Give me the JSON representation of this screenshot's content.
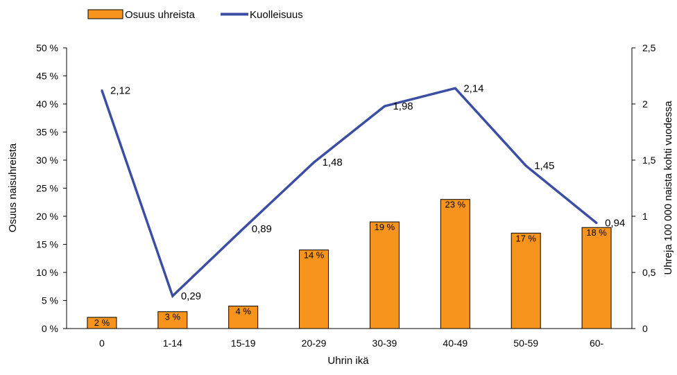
{
  "chart_data": {
    "type": "bar",
    "categories": [
      "0",
      "1-14",
      "15-19",
      "20-29",
      "30-39",
      "40-49",
      "50-59",
      "60-"
    ],
    "series": [
      {
        "name": "Osuus uhreista",
        "kind": "bar",
        "axis": "left",
        "color": "#F7941D",
        "values": [
          2,
          3,
          4,
          14,
          19,
          23,
          17,
          18
        ],
        "labels": [
          "2 %",
          "3 %",
          "4 %",
          "14 %",
          "19 %",
          "23 %",
          "17 %",
          "18 %"
        ]
      },
      {
        "name": "Kuolleisuus",
        "kind": "line",
        "axis": "right",
        "color": "#3B4EA3",
        "values": [
          2.12,
          0.29,
          0.89,
          1.48,
          1.98,
          2.14,
          1.45,
          0.94
        ],
        "labels": [
          "2,12",
          "0,29",
          "0,89",
          "1,48",
          "1,98",
          "2,14",
          "1,45",
          "0,94"
        ]
      }
    ],
    "xlabel": "Uhrin ikä",
    "ylabel": "Osuus naisuhreista",
    "y2label": "Uhreja 100 000 naista kohti vuodessa",
    "ylim": [
      0,
      50
    ],
    "y2lim": [
      0,
      2.5
    ],
    "yticks": [
      "0 %",
      "5 %",
      "10 %",
      "15 %",
      "20 %",
      "25 %",
      "30 %",
      "35 %",
      "40 %",
      "45 %",
      "50 %"
    ],
    "y2ticks": [
      "0",
      "0,5",
      "1",
      "1,5",
      "2",
      "2,5"
    ],
    "grid": false,
    "legend_position": "top-left"
  }
}
